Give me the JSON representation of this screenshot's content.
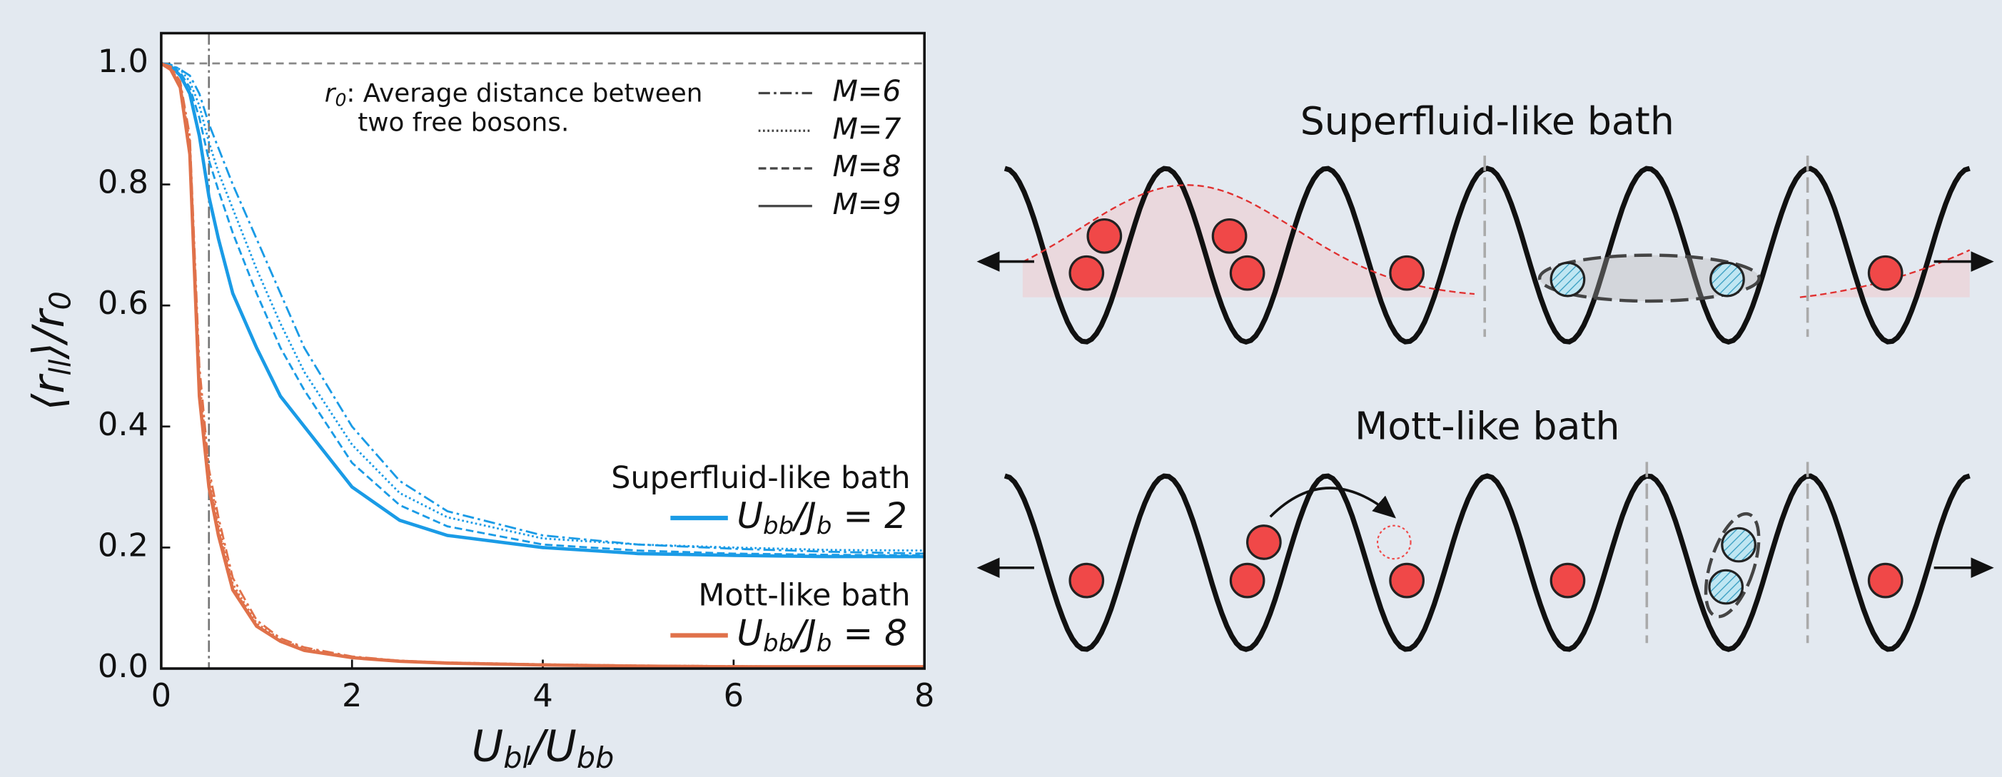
{
  "chart_data": {
    "type": "line",
    "xlabel": [
      "U",
      "bl",
      "/U",
      "bb"
    ],
    "ylabel": [
      "⟨r",
      "ll",
      "⟩/r",
      "0"
    ],
    "annotation": {
      "symbol": [
        "r",
        "0"
      ],
      "line1": ": Average distance between",
      "line2": "two free bosons."
    },
    "x": [
      0,
      0.1,
      0.2,
      0.3,
      0.4,
      0.5,
      0.6,
      0.75,
      1,
      1.25,
      1.5,
      2,
      2.5,
      3,
      4,
      5,
      6,
      7,
      8
    ],
    "xlim": [
      0,
      8
    ],
    "xticks": [
      0,
      2,
      4,
      6,
      8
    ],
    "ylim": [
      0,
      1.05
    ],
    "yticks": [
      {
        "value": 0,
        "label": "0.0"
      },
      {
        "value": 0.2,
        "label": "0.2"
      },
      {
        "value": 0.4,
        "label": "0.4"
      },
      {
        "value": 0.6,
        "label": "0.6"
      },
      {
        "value": 0.8,
        "label": "0.8"
      },
      {
        "value": 1,
        "label": "1.0"
      }
    ],
    "hline": 1,
    "vline": 0.5,
    "line_styles": [
      {
        "name": "M=6",
        "dash": "dashdot"
      },
      {
        "name": "M=7",
        "dash": "dotted"
      },
      {
        "name": "M=8",
        "dash": "dashed"
      },
      {
        "name": "M=9",
        "dash": "solid"
      }
    ],
    "baths": [
      {
        "name": "Superfluid-like bath",
        "label": [
          "U",
          "bb",
          "/J",
          "b",
          " = 2"
        ],
        "color": "#1a9be6",
        "curves": [
          [
            1,
            0.998,
            0.99,
            0.98,
            0.95,
            0.9,
            0.86,
            0.8,
            0.71,
            0.62,
            0.53,
            0.4,
            0.31,
            0.26,
            0.22,
            0.205,
            0.198,
            0.193,
            0.19
          ],
          [
            1,
            0.997,
            0.99,
            0.97,
            0.93,
            0.87,
            0.82,
            0.76,
            0.66,
            0.57,
            0.49,
            0.37,
            0.29,
            0.25,
            0.215,
            0.205,
            0.2,
            0.196,
            0.195
          ],
          [
            1,
            0.996,
            0.985,
            0.96,
            0.91,
            0.84,
            0.79,
            0.72,
            0.62,
            0.53,
            0.46,
            0.34,
            0.27,
            0.235,
            0.205,
            0.195,
            0.19,
            0.188,
            0.187
          ],
          [
            1,
            0.995,
            0.98,
            0.95,
            0.88,
            0.78,
            0.71,
            0.62,
            0.53,
            0.45,
            0.4,
            0.3,
            0.245,
            0.22,
            0.2,
            0.19,
            0.187,
            0.185,
            0.185
          ]
        ]
      },
      {
        "name": "Mott-like bath",
        "label": [
          "U",
          "bb",
          "/J",
          "b",
          " = 8"
        ],
        "color": "#e0714a",
        "curves": [
          [
            1,
            0.995,
            0.97,
            0.88,
            0.5,
            0.33,
            0.25,
            0.15,
            0.08,
            0.05,
            0.035,
            0.02,
            0.013,
            0.01,
            0.007,
            0.005,
            0.004,
            0.003,
            0.003
          ],
          [
            1,
            0.994,
            0.965,
            0.87,
            0.48,
            0.32,
            0.24,
            0.14,
            0.075,
            0.048,
            0.033,
            0.019,
            0.013,
            0.01,
            0.007,
            0.005,
            0.004,
            0.003,
            0.003
          ],
          [
            1,
            0.992,
            0.962,
            0.86,
            0.46,
            0.31,
            0.23,
            0.135,
            0.072,
            0.046,
            0.031,
            0.018,
            0.012,
            0.009,
            0.006,
            0.004,
            0.003,
            0.003,
            0.003
          ],
          [
            1,
            0.99,
            0.96,
            0.85,
            0.45,
            0.3,
            0.22,
            0.13,
            0.07,
            0.045,
            0.03,
            0.018,
            0.012,
            0.009,
            0.006,
            0.004,
            0.003,
            0.003,
            0.003
          ]
        ]
      }
    ]
  },
  "diagram": {
    "panels": [
      {
        "title": "Superfluid-like bath"
      },
      {
        "title": "Mott-like bath"
      }
    ]
  }
}
